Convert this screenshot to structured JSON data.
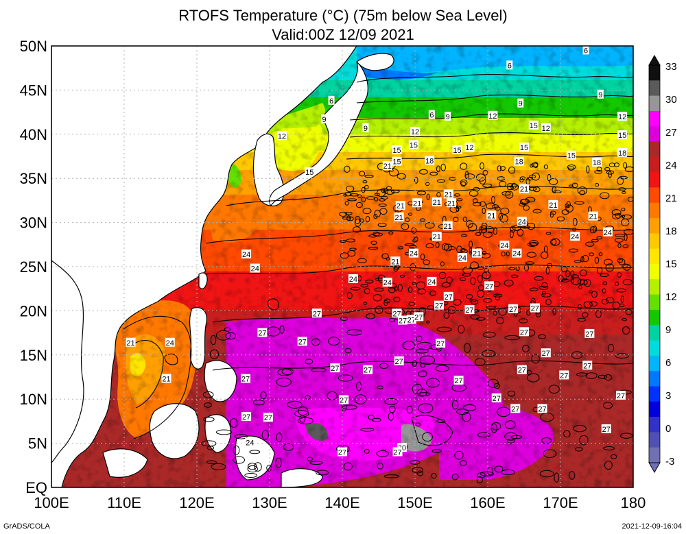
{
  "title": "RTOFS Temperature (°C) (75m below Sea Level)",
  "subtitle": "Valid:00Z 12/09 2021",
  "footer_left": "GrADS/COLA",
  "footer_right": "2021-12-09-16:04",
  "lat_labels": [
    "50N",
    "45N",
    "40N",
    "35N",
    "30N",
    "25N",
    "20N",
    "15N",
    "10N",
    "5N",
    "EQ"
  ],
  "lon_labels": [
    "100E",
    "110E",
    "120E",
    "130E",
    "140E",
    "150E",
    "160E",
    "170E",
    "180"
  ],
  "colorbar": {
    "labels": [
      "33",
      "30",
      "27",
      "24",
      "21",
      "18",
      "15",
      "12",
      "9",
      "6",
      "3",
      "0",
      "-3"
    ],
    "colors": [
      "#101010",
      "#5a5a5a",
      "#969696",
      "#ff00ff",
      "#dc00dc",
      "#aa2828",
      "#c81e1e",
      "#f01414",
      "#ff4a00",
      "#ff7800",
      "#ffa000",
      "#ffc800",
      "#ffe600",
      "#f0ff00",
      "#b4f000",
      "#64e000",
      "#14c800",
      "#00d2a0",
      "#00dcdc",
      "#00b4ff",
      "#0078ff",
      "#0032ff",
      "#0000dc",
      "#3232c8",
      "#5050b4",
      "#7070b4"
    ]
  },
  "contour_labels": [
    {
      "v": "6",
      "lon": 173.5,
      "lat": 49.5
    },
    {
      "v": "6",
      "lon": 163,
      "lat": 47.8
    },
    {
      "v": "9",
      "lon": 164.5,
      "lat": 43.5
    },
    {
      "v": "9",
      "lon": 175.5,
      "lat": 44.5
    },
    {
      "v": "6",
      "lon": 138.5,
      "lat": 43.8
    },
    {
      "v": "9",
      "lon": 137.5,
      "lat": 41.7
    },
    {
      "v": "9",
      "lon": 143.2,
      "lat": 40.7
    },
    {
      "v": "6",
      "lon": 152.3,
      "lat": 42.2
    },
    {
      "v": "9",
      "lon": 154.5,
      "lat": 42
    },
    {
      "v": "12",
      "lon": 160.7,
      "lat": 42.1
    },
    {
      "v": "12",
      "lon": 178.5,
      "lat": 42
    },
    {
      "v": "12",
      "lon": 131.7,
      "lat": 39.8
    },
    {
      "v": "12",
      "lon": 150,
      "lat": 40.3
    },
    {
      "v": "15",
      "lon": 166.3,
      "lat": 41
    },
    {
      "v": "12",
      "lon": 168,
      "lat": 40.7
    },
    {
      "v": "15",
      "lon": 178.5,
      "lat": 39.9
    },
    {
      "v": "15",
      "lon": 149.8,
      "lat": 38.8
    },
    {
      "v": "15",
      "lon": 147.5,
      "lat": 38.2
    },
    {
      "v": "15",
      "lon": 155.8,
      "lat": 38.2
    },
    {
      "v": "12",
      "lon": 157.5,
      "lat": 38.5
    },
    {
      "v": "15",
      "lon": 165,
      "lat": 38.5
    },
    {
      "v": "18",
      "lon": 178.5,
      "lat": 37.9
    },
    {
      "v": "15",
      "lon": 171.5,
      "lat": 37.6
    },
    {
      "v": "21",
      "lon": 146.2,
      "lat": 36.4
    },
    {
      "v": "15",
      "lon": 147.5,
      "lat": 36.9
    },
    {
      "v": "18",
      "lon": 152,
      "lat": 37
    },
    {
      "v": "18",
      "lon": 164.3,
      "lat": 36.9
    },
    {
      "v": "18",
      "lon": 175,
      "lat": 36.8
    },
    {
      "v": "15",
      "lon": 135.5,
      "lat": 35.7
    },
    {
      "v": "21",
      "lon": 165,
      "lat": 33.8
    },
    {
      "v": "21",
      "lon": 154.6,
      "lat": 33.2
    },
    {
      "v": "21",
      "lon": 148,
      "lat": 31.9
    },
    {
      "v": "21",
      "lon": 150.3,
      "lat": 32.2
    },
    {
      "v": "21",
      "lon": 153,
      "lat": 32.3
    },
    {
      "v": "21",
      "lon": 155,
      "lat": 32.2
    },
    {
      "v": "21",
      "lon": 169,
      "lat": 32
    },
    {
      "v": "21",
      "lon": 147.8,
      "lat": 30.6
    },
    {
      "v": "21",
      "lon": 160.5,
      "lat": 30.8
    },
    {
      "v": "24",
      "lon": 164.7,
      "lat": 30.1
    },
    {
      "v": "21",
      "lon": 174.5,
      "lat": 30.7
    },
    {
      "v": "21",
      "lon": 154.5,
      "lat": 29.6
    },
    {
      "v": "21",
      "lon": 153,
      "lat": 28.4
    },
    {
      "v": "24",
      "lon": 176.5,
      "lat": 28.9
    },
    {
      "v": "24",
      "lon": 172,
      "lat": 28.4
    },
    {
      "v": "24",
      "lon": 162.3,
      "lat": 27.4
    },
    {
      "v": "24",
      "lon": 149.8,
      "lat": 26.5
    },
    {
      "v": "21",
      "lon": 158.5,
      "lat": 26.5
    },
    {
      "v": "24",
      "lon": 156.5,
      "lat": 26
    },
    {
      "v": "24",
      "lon": 164,
      "lat": 26.5
    },
    {
      "v": "24",
      "lon": 126.8,
      "lat": 26.4
    },
    {
      "v": "21",
      "lon": 147.3,
      "lat": 25.6
    },
    {
      "v": "24",
      "lon": 128,
      "lat": 24.8
    },
    {
      "v": "24",
      "lon": 141.5,
      "lat": 23.6
    },
    {
      "v": "24",
      "lon": 146.2,
      "lat": 23.2
    },
    {
      "v": "24",
      "lon": 152.3,
      "lat": 23.3
    },
    {
      "v": "27",
      "lon": 160.2,
      "lat": 22.8
    },
    {
      "v": "27",
      "lon": 154.6,
      "lat": 21.6
    },
    {
      "v": "27",
      "lon": 153.3,
      "lat": 20.6
    },
    {
      "v": "27",
      "lon": 157.5,
      "lat": 20.1
    },
    {
      "v": "27",
      "lon": 163.5,
      "lat": 20.2
    },
    {
      "v": "27",
      "lon": 166.5,
      "lat": 20.3
    },
    {
      "v": "27",
      "lon": 136.5,
      "lat": 19.7
    },
    {
      "v": "27",
      "lon": 147.5,
      "lat": 19.7
    },
    {
      "v": "27",
      "lon": 149.5,
      "lat": 19
    },
    {
      "v": "27",
      "lon": 148.3,
      "lat": 18.9
    },
    {
      "v": "27",
      "lon": 150.5,
      "lat": 19.3
    },
    {
      "v": "27",
      "lon": 165,
      "lat": 17.6
    },
    {
      "v": "27",
      "lon": 174,
      "lat": 17.4
    },
    {
      "v": "27",
      "lon": 129,
      "lat": 17.5
    },
    {
      "v": "27",
      "lon": 134.5,
      "lat": 16.5
    },
    {
      "v": "27",
      "lon": 153.5,
      "lat": 16.3
    },
    {
      "v": "21",
      "lon": 110.9,
      "lat": 16.4
    },
    {
      "v": "24",
      "lon": 116.3,
      "lat": 16.4
    },
    {
      "v": "27",
      "lon": 168,
      "lat": 15.2
    },
    {
      "v": "27",
      "lon": 147.8,
      "lat": 14.3
    },
    {
      "v": "27",
      "lon": 139,
      "lat": 13.5
    },
    {
      "v": "27",
      "lon": 143.5,
      "lat": 13.3
    },
    {
      "v": "27",
      "lon": 164.7,
      "lat": 13.3
    },
    {
      "v": "27",
      "lon": 173.7,
      "lat": 13.8
    },
    {
      "v": "27",
      "lon": 170.5,
      "lat": 12.7
    },
    {
      "v": "27",
      "lon": 126.7,
      "lat": 12.3
    },
    {
      "v": "27",
      "lon": 156,
      "lat": 12.1
    },
    {
      "v": "21",
      "lon": 115.8,
      "lat": 12.3
    },
    {
      "v": "27",
      "lon": 178.3,
      "lat": 10.4
    },
    {
      "v": "27",
      "lon": 140.2,
      "lat": 9.9
    },
    {
      "v": "27",
      "lon": 161.2,
      "lat": 10.1
    },
    {
      "v": "27",
      "lon": 163.8,
      "lat": 8.9
    },
    {
      "v": "27",
      "lon": 126.8,
      "lat": 8
    },
    {
      "v": "27",
      "lon": 129.8,
      "lat": 7.9
    },
    {
      "v": "27",
      "lon": 167.5,
      "lat": 8.9
    },
    {
      "v": "27",
      "lon": 176.3,
      "lat": 6.6
    },
    {
      "v": "24",
      "lon": 127.3,
      "lat": 5.1
    },
    {
      "v": "30",
      "lon": 148.2,
      "lat": 4.5
    },
    {
      "v": "27",
      "lon": 140,
      "lat": 4
    },
    {
      "v": "27",
      "lon": 147.6,
      "lat": 4
    }
  ]
}
